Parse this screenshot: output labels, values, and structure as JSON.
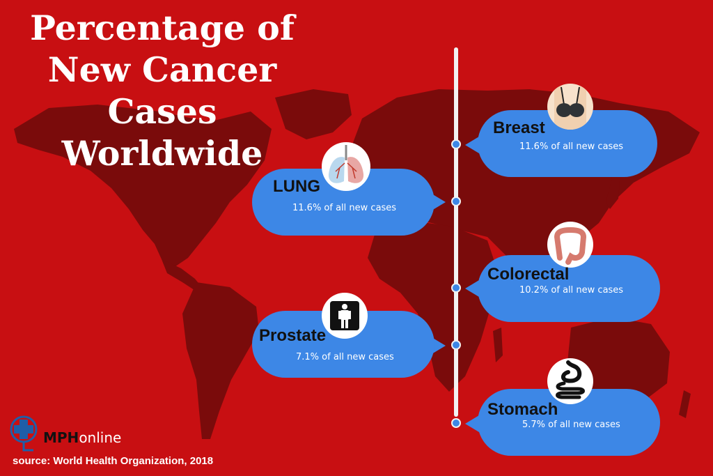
{
  "title": {
    "line1": "Percentage of",
    "line2": "New Cancer",
    "line3": "Cases",
    "line4": "Worldwide"
  },
  "cancers": [
    {
      "name": "Breast",
      "percent_text": "11.6% of all new cases",
      "icon": "breast-icon"
    },
    {
      "name": "LUNG",
      "percent_text": "11.6% of all new cases",
      "icon": "lungs-icon"
    },
    {
      "name": "Colorectal",
      "percent_text": "10.2% of all new cases",
      "icon": "colon-icon"
    },
    {
      "name": "Prostate",
      "percent_text": "7.1% of all new cases",
      "icon": "male-figure-icon"
    },
    {
      "name": "Stomach",
      "percent_text": "5.7% of all new cases",
      "icon": "stomach-icon"
    }
  ],
  "brand": {
    "part1": "MPH",
    "part2": "online"
  },
  "source": "source: World Health Organization, 2018",
  "colors": {
    "background": "#c80f12",
    "map": "#7a0b0b",
    "bubble": "#3d87e6",
    "timeline": "#f2f2f2"
  }
}
